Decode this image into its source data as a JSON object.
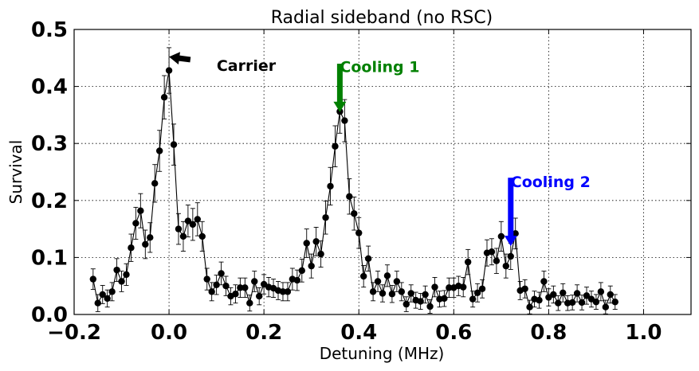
{
  "chart_data": {
    "type": "scatter",
    "title": "Radial sideband (no RSC)",
    "xlabel": "Detuning (MHz)",
    "ylabel": "Survival",
    "xlim": [
      -0.2,
      1.1
    ],
    "ylim": [
      0.0,
      0.5
    ],
    "xticks": [
      -0.2,
      0.0,
      0.2,
      0.4,
      0.6,
      0.8,
      1.0
    ],
    "xtick_labels": [
      "−0.2",
      "0.0",
      "0.2",
      "0.4",
      "0.6",
      "0.8",
      "1.0"
    ],
    "yticks": [
      0.0,
      0.1,
      0.2,
      0.3,
      0.4,
      0.5
    ],
    "ytick_labels": [
      "0.0",
      "0.1",
      "0.2",
      "0.3",
      "0.4",
      "0.5"
    ],
    "grid": true,
    "series": [
      {
        "color": "#000000",
        "marker": "circle",
        "line": true,
        "error_bars": true,
        "x": [
          -0.16,
          -0.15,
          -0.14,
          -0.13,
          -0.12,
          -0.11,
          -0.1,
          -0.09,
          -0.08,
          -0.07,
          -0.06,
          -0.05,
          -0.04,
          -0.03,
          -0.02,
          -0.01,
          0.0,
          0.01,
          0.02,
          0.03,
          0.04,
          0.05,
          0.06,
          0.07,
          0.08,
          0.09,
          0.1,
          0.11,
          0.12,
          0.13,
          0.14,
          0.15,
          0.16,
          0.17,
          0.18,
          0.19,
          0.2,
          0.21,
          0.22,
          0.23,
          0.24,
          0.25,
          0.26,
          0.27,
          0.28,
          0.29,
          0.3,
          0.31,
          0.32,
          0.33,
          0.34,
          0.35,
          0.36,
          0.37,
          0.38,
          0.39,
          0.4,
          0.41,
          0.42,
          0.43,
          0.44,
          0.45,
          0.46,
          0.47,
          0.48,
          0.49,
          0.5,
          0.51,
          0.52,
          0.53,
          0.54,
          0.55,
          0.56,
          0.57,
          0.58,
          0.59,
          0.6,
          0.61,
          0.62,
          0.63,
          0.64,
          0.65,
          0.66,
          0.67,
          0.68,
          0.69,
          0.7,
          0.71,
          0.72,
          0.73,
          0.74,
          0.75,
          0.76,
          0.77,
          0.78,
          0.79,
          0.8,
          0.81,
          0.82,
          0.83,
          0.84,
          0.85,
          0.86,
          0.87,
          0.88,
          0.89,
          0.9,
          0.91,
          0.92,
          0.93,
          0.94
        ],
        "y": [
          0.062,
          0.02,
          0.035,
          0.028,
          0.04,
          0.078,
          0.058,
          0.07,
          0.117,
          0.16,
          0.182,
          0.123,
          0.135,
          0.23,
          0.287,
          0.381,
          0.428,
          0.298,
          0.15,
          0.137,
          0.164,
          0.158,
          0.167,
          0.137,
          0.062,
          0.04,
          0.052,
          0.072,
          0.05,
          0.032,
          0.036,
          0.047,
          0.047,
          0.02,
          0.058,
          0.032,
          0.053,
          0.048,
          0.046,
          0.042,
          0.04,
          0.04,
          0.062,
          0.06,
          0.077,
          0.125,
          0.085,
          0.128,
          0.106,
          0.17,
          0.225,
          0.295,
          0.356,
          0.34,
          0.207,
          0.177,
          0.143,
          0.067,
          0.098,
          0.04,
          0.058,
          0.037,
          0.068,
          0.036,
          0.058,
          0.04,
          0.018,
          0.037,
          0.025,
          0.023,
          0.035,
          0.014,
          0.048,
          0.027,
          0.028,
          0.047,
          0.047,
          0.05,
          0.048,
          0.092,
          0.027,
          0.038,
          0.045,
          0.108,
          0.11,
          0.094,
          0.137,
          0.085,
          0.102,
          0.142,
          0.042,
          0.045,
          0.013,
          0.027,
          0.025,
          0.058,
          0.03,
          0.035,
          0.02,
          0.038,
          0.02,
          0.021,
          0.037,
          0.021,
          0.033,
          0.027,
          0.022,
          0.04,
          0.013,
          0.035,
          0.022
        ],
        "yerr": [
          0.018,
          0.015,
          0.016,
          0.015,
          0.016,
          0.02,
          0.018,
          0.019,
          0.024,
          0.028,
          0.03,
          0.025,
          0.026,
          0.033,
          0.036,
          0.038,
          0.04,
          0.036,
          0.027,
          0.026,
          0.028,
          0.028,
          0.029,
          0.026,
          0.019,
          0.016,
          0.017,
          0.02,
          0.017,
          0.015,
          0.016,
          0.017,
          0.017,
          0.014,
          0.018,
          0.015,
          0.017,
          0.017,
          0.016,
          0.016,
          0.016,
          0.016,
          0.019,
          0.018,
          0.02,
          0.025,
          0.021,
          0.025,
          0.023,
          0.029,
          0.033,
          0.036,
          0.038,
          0.037,
          0.031,
          0.029,
          0.027,
          0.019,
          0.022,
          0.016,
          0.018,
          0.015,
          0.019,
          0.015,
          0.018,
          0.016,
          0.013,
          0.015,
          0.014,
          0.014,
          0.015,
          0.012,
          0.017,
          0.014,
          0.014,
          0.017,
          0.017,
          0.017,
          0.017,
          0.022,
          0.014,
          0.016,
          0.016,
          0.023,
          0.023,
          0.022,
          0.026,
          0.021,
          0.023,
          0.027,
          0.016,
          0.016,
          0.012,
          0.014,
          0.014,
          0.018,
          0.015,
          0.015,
          0.013,
          0.016,
          0.013,
          0.013,
          0.015,
          0.013,
          0.015,
          0.014,
          0.013,
          0.016,
          0.012,
          0.015,
          0.013
        ]
      }
    ],
    "annotations": [
      {
        "text": "Carrier",
        "color": "#000000",
        "arrow_from": [
          0.045,
          0.447
        ],
        "arrow_to": [
          0.0,
          0.452
        ],
        "text_at": [
          0.05,
          0.455
        ]
      },
      {
        "text": "Cooling 1",
        "color": "#008000",
        "arrow_from": [
          0.36,
          0.44
        ],
        "arrow_to": [
          0.36,
          0.355
        ],
        "text_at": [
          0.36,
          0.452
        ]
      },
      {
        "text": "Cooling 2",
        "color": "#0000ff",
        "arrow_from": [
          0.72,
          0.24
        ],
        "arrow_to": [
          0.72,
          0.12
        ],
        "text_at": [
          0.72,
          0.25
        ]
      }
    ]
  }
}
